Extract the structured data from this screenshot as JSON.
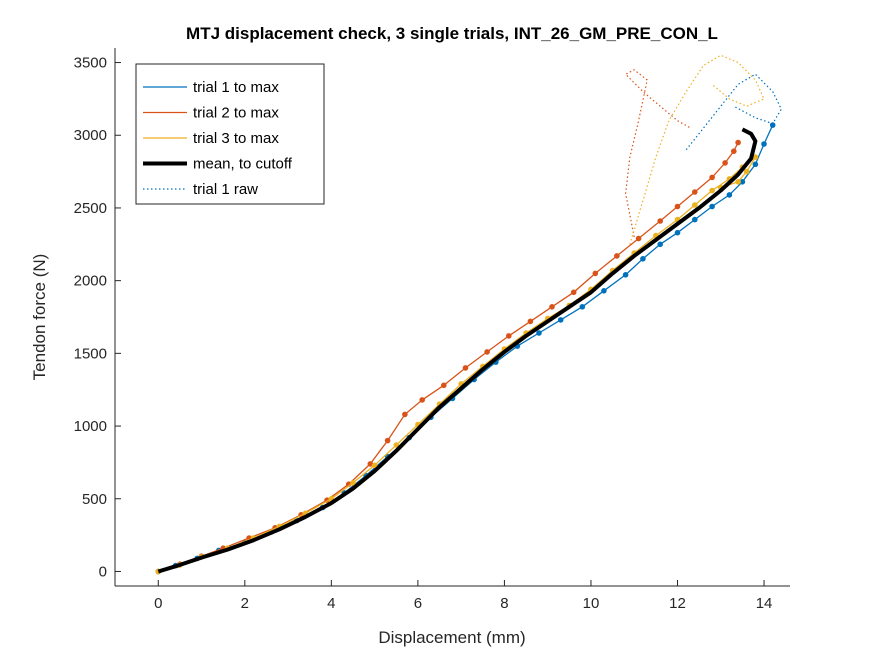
{
  "chart_data": {
    "type": "line",
    "title": "MTJ displacement check, 3 single trials, INT_26_GM_PRE_CON_L",
    "xlabel": "Displacement (mm)",
    "ylabel": "Tendon force (N)",
    "xlim": [
      -1,
      14.6
    ],
    "ylim": [
      -100,
      3600
    ],
    "xticks": [
      0,
      2,
      4,
      6,
      8,
      10,
      12,
      14
    ],
    "yticks": [
      0,
      500,
      1000,
      1500,
      2000,
      2500,
      3000,
      3500
    ],
    "xtick_labels": [
      "0",
      "2",
      "4",
      "6",
      "8",
      "10",
      "12",
      "14"
    ],
    "ytick_labels": [
      "0",
      "500",
      "1000",
      "1500",
      "2000",
      "2500",
      "3000",
      "3500"
    ],
    "grid": false,
    "legend_position": "top-left",
    "series": [
      {
        "name": "trial 1 to max",
        "color": "#0072BD",
        "style": "solid-dots",
        "x": [
          0,
          0.4,
          0.9,
          1.4,
          2.0,
          2.6,
          3.2,
          3.8,
          4.3,
          4.8,
          5.3,
          5.8,
          6.3,
          6.8,
          7.3,
          7.8,
          8.3,
          8.8,
          9.3,
          9.8,
          10.3,
          10.8,
          11.2,
          11.6,
          12.0,
          12.4,
          12.8,
          13.2,
          13.5,
          13.8,
          14.0,
          14.2
        ],
        "y": [
          0,
          40,
          90,
          145,
          200,
          270,
          350,
          440,
          540,
          660,
          790,
          920,
          1060,
          1190,
          1320,
          1440,
          1550,
          1640,
          1730,
          1820,
          1930,
          2040,
          2150,
          2250,
          2330,
          2420,
          2510,
          2590,
          2680,
          2800,
          2940,
          3070
        ]
      },
      {
        "name": "trial 2 to max",
        "color": "#D95319",
        "style": "solid-dots",
        "x": [
          0,
          0.5,
          1.0,
          1.5,
          2.1,
          2.7,
          3.3,
          3.9,
          4.4,
          4.9,
          5.3,
          5.7,
          6.1,
          6.6,
          7.1,
          7.6,
          8.1,
          8.6,
          9.1,
          9.6,
          10.1,
          10.6,
          11.1,
          11.6,
          12.0,
          12.4,
          12.8,
          13.1,
          13.3,
          13.4
        ],
        "y": [
          0,
          50,
          105,
          160,
          230,
          300,
          390,
          490,
          600,
          740,
          900,
          1080,
          1180,
          1280,
          1400,
          1510,
          1620,
          1720,
          1820,
          1920,
          2050,
          2170,
          2290,
          2410,
          2510,
          2610,
          2710,
          2810,
          2890,
          2950
        ]
      },
      {
        "name": "trial 3 to max",
        "color": "#EDB120",
        "style": "solid-dots",
        "x": [
          0,
          0.5,
          1.0,
          1.6,
          2.2,
          2.8,
          3.4,
          4.0,
          4.5,
          5.0,
          5.5,
          6.0,
          6.5,
          7.0,
          7.5,
          8.0,
          8.5,
          9.0,
          9.5,
          10.0,
          10.5,
          11.0,
          11.5,
          12.0,
          12.4,
          12.8,
          13.2,
          13.5,
          13.8,
          13.6,
          13.4,
          13.0
        ],
        "y": [
          0,
          45,
          100,
          160,
          230,
          310,
          400,
          500,
          610,
          730,
          870,
          1010,
          1150,
          1290,
          1410,
          1530,
          1640,
          1740,
          1830,
          1940,
          2070,
          2190,
          2310,
          2420,
          2520,
          2620,
          2700,
          2780,
          2850,
          2750,
          2680,
          2640
        ]
      },
      {
        "name": "mean, to cutoff",
        "color": "#000000",
        "style": "thick",
        "x": [
          0,
          0.5,
          1.0,
          1.6,
          2.2,
          2.8,
          3.4,
          4.0,
          4.5,
          5.0,
          5.5,
          6.0,
          6.5,
          7.0,
          7.5,
          8.0,
          8.5,
          9.0,
          9.5,
          10.0,
          10.5,
          11.0,
          11.5,
          12.0,
          12.5,
          13.0,
          13.4,
          13.7,
          13.8,
          13.7,
          13.5
        ],
        "y": [
          0,
          45,
          95,
          150,
          215,
          290,
          375,
          470,
          570,
          690,
          830,
          980,
          1130,
          1260,
          1390,
          1510,
          1620,
          1720,
          1820,
          1920,
          2050,
          2170,
          2280,
          2390,
          2500,
          2620,
          2730,
          2840,
          2960,
          3010,
          3040
        ]
      },
      {
        "name": "trial 1 raw",
        "color": "#0072BD",
        "style": "dotted",
        "x": [
          12.2,
          12.6,
          13.0,
          13.4,
          13.8,
          14.2,
          14.4,
          14.2,
          13.8,
          13.3
        ],
        "y": [
          2900,
          3050,
          3200,
          3350,
          3420,
          3300,
          3180,
          3080,
          3120,
          3200
        ]
      }
    ],
    "extra_raw_traces": [
      {
        "color": "#D95319",
        "x": [
          11.0,
          10.8,
          10.9,
          11.1,
          11.3,
          11.0,
          10.8,
          11.2,
          11.6,
          12.0,
          12.3
        ],
        "y": [
          2300,
          2600,
          2850,
          3100,
          3380,
          3450,
          3420,
          3300,
          3200,
          3100,
          3050
        ]
      },
      {
        "color": "#EDB120",
        "x": [
          10.9,
          11.2,
          11.5,
          11.8,
          12.2,
          12.6,
          13.0,
          13.4,
          13.8,
          14.0,
          13.6,
          13.2,
          12.8
        ],
        "y": [
          2250,
          2550,
          2850,
          3100,
          3300,
          3480,
          3550,
          3500,
          3380,
          3250,
          3200,
          3250,
          3350
        ]
      }
    ]
  }
}
